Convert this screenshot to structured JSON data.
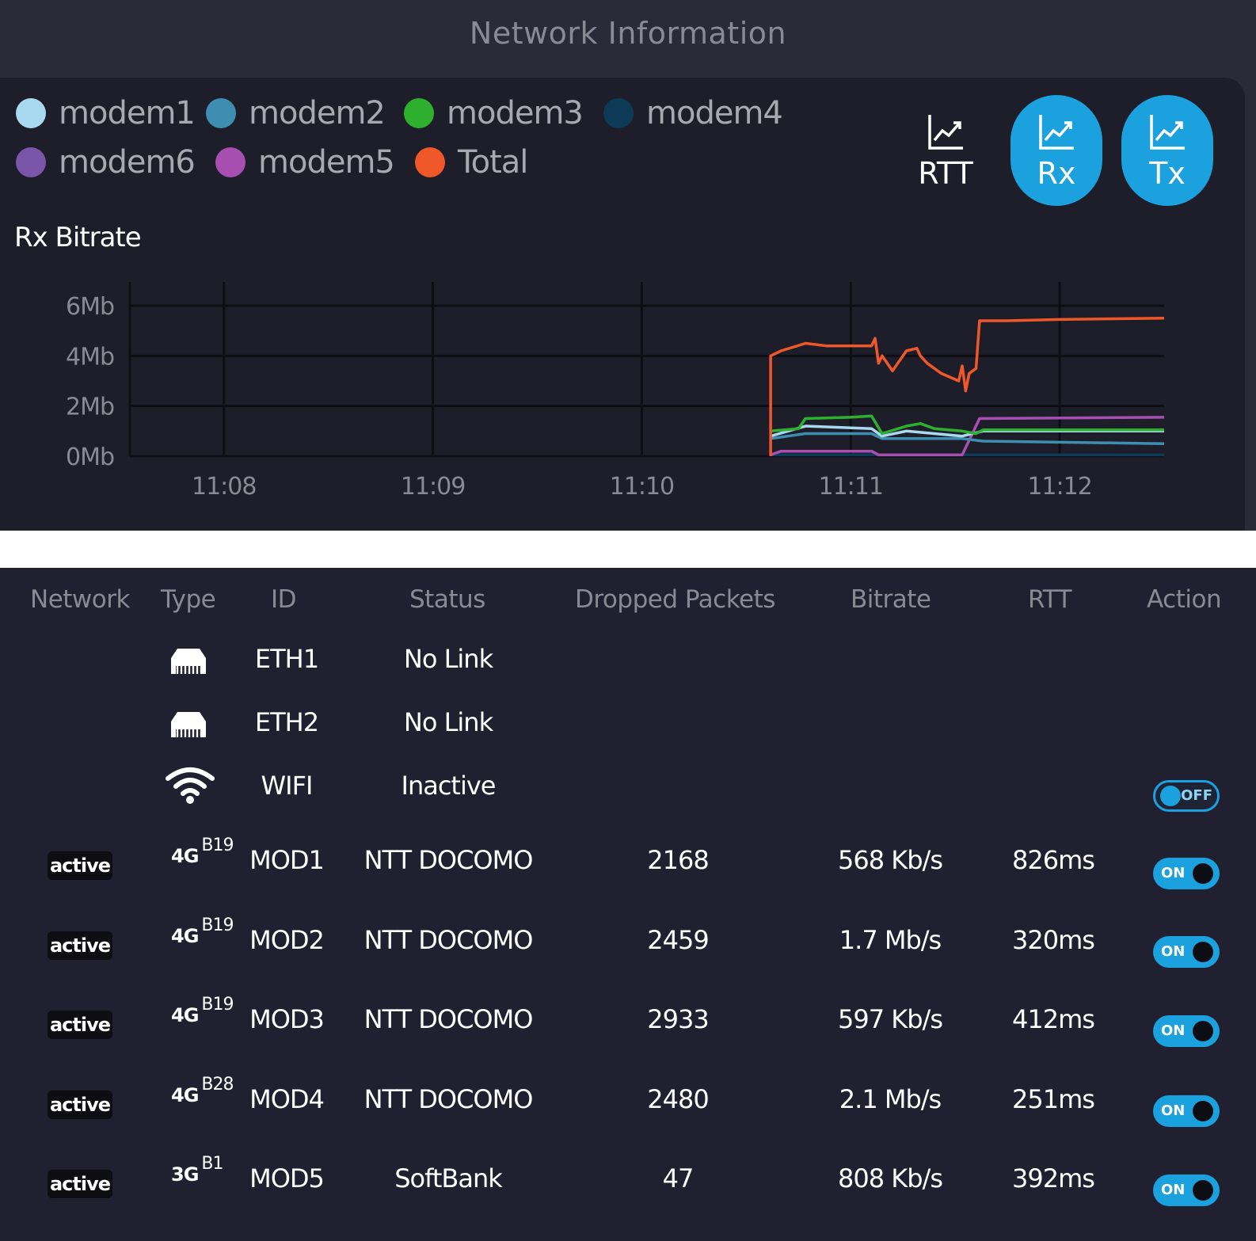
{
  "header": {
    "title": "Network Information"
  },
  "legend": [
    {
      "label": "modem1",
      "color": "#a9d9ee"
    },
    {
      "label": "modem2",
      "color": "#3d8eb0"
    },
    {
      "label": "modem3",
      "color": "#2eb02e"
    },
    {
      "label": "modem4",
      "color": "#0d3b57"
    },
    {
      "label": "modem6",
      "color": "#7a55a8"
    },
    {
      "label": "modem5",
      "color": "#a64fb0"
    },
    {
      "label": "Total",
      "color": "#f0582a"
    }
  ],
  "metrics": {
    "rtt": "RTT",
    "rx": "Rx",
    "tx": "Tx",
    "accent": "#1aa1de"
  },
  "chart_data": {
    "type": "line",
    "title": "Rx Bitrate",
    "y_unit": "Mb",
    "ylim": [
      0,
      6
    ],
    "y_ticks": [
      "0Mb",
      "2Mb",
      "4Mb",
      "6Mb"
    ],
    "y_tick_values": [
      0,
      2,
      4,
      6
    ],
    "xlim": [
      "11:07:33",
      "11:12:30"
    ],
    "x_ticks": [
      "11:08",
      "11:09",
      "11:10",
      "11:11",
      "11:12"
    ],
    "x_tick_values": [
      "11:08:00",
      "11:09:00",
      "11:10:00",
      "11:11:00",
      "11:12:00"
    ],
    "grid": true,
    "series": [
      {
        "name": "Total",
        "color": "#f0582a",
        "points": [
          [
            "11:10:37",
            0
          ],
          [
            "11:10:37",
            4.0
          ],
          [
            "11:10:40",
            4.2
          ],
          [
            "11:10:47",
            4.5
          ],
          [
            "11:10:53",
            4.4
          ],
          [
            "11:11:00",
            4.4
          ],
          [
            "11:11:06",
            4.4
          ],
          [
            "11:11:07",
            4.7
          ],
          [
            "11:11:08",
            3.7
          ],
          [
            "11:11:09",
            4.0
          ],
          [
            "11:11:12",
            3.4
          ],
          [
            "11:11:16",
            4.2
          ],
          [
            "11:11:19",
            4.3
          ],
          [
            "11:11:20",
            4.0
          ],
          [
            "11:11:22",
            3.7
          ],
          [
            "11:11:26",
            3.3
          ],
          [
            "11:11:31",
            3.0
          ],
          [
            "11:11:32",
            3.6
          ],
          [
            "11:11:33",
            2.6
          ],
          [
            "11:11:34",
            3.3
          ],
          [
            "11:11:36",
            3.5
          ],
          [
            "11:11:37",
            5.4
          ],
          [
            "11:11:45",
            5.4
          ],
          [
            "11:12:00",
            5.45
          ],
          [
            "11:12:30",
            5.5
          ]
        ]
      },
      {
        "name": "modem3",
        "color": "#2eb02e",
        "points": [
          [
            "11:10:37",
            1.0
          ],
          [
            "11:10:45",
            1.1
          ],
          [
            "11:10:47",
            1.5
          ],
          [
            "11:11:00",
            1.55
          ],
          [
            "11:11:06",
            1.6
          ],
          [
            "11:11:09",
            0.9
          ],
          [
            "11:11:16",
            1.2
          ],
          [
            "11:11:20",
            1.3
          ],
          [
            "11:11:24",
            1.1
          ],
          [
            "11:11:32",
            1.0
          ],
          [
            "11:11:36",
            0.9
          ],
          [
            "11:11:38",
            1.05
          ],
          [
            "11:12:30",
            1.05
          ]
        ]
      },
      {
        "name": "modem1",
        "color": "#a9d9ee",
        "points": [
          [
            "11:10:37",
            0.8
          ],
          [
            "11:10:47",
            1.2
          ],
          [
            "11:11:06",
            1.1
          ],
          [
            "11:11:09",
            0.8
          ],
          [
            "11:11:16",
            1.0
          ],
          [
            "11:11:32",
            0.8
          ],
          [
            "11:11:38",
            1.0
          ],
          [
            "11:12:30",
            1.0
          ]
        ]
      },
      {
        "name": "modem2",
        "color": "#3d8eb0",
        "points": [
          [
            "11:10:37",
            0.7
          ],
          [
            "11:10:47",
            0.9
          ],
          [
            "11:11:06",
            0.9
          ],
          [
            "11:11:09",
            0.7
          ],
          [
            "11:11:32",
            0.7
          ],
          [
            "11:11:38",
            0.6
          ],
          [
            "11:12:30",
            0.5
          ]
        ]
      },
      {
        "name": "modem5",
        "color": "#a64fb0",
        "points": [
          [
            "11:10:37",
            0.05
          ],
          [
            "11:10:40",
            0.2
          ],
          [
            "11:11:06",
            0.2
          ],
          [
            "11:11:08",
            0.05
          ],
          [
            "11:11:32",
            0.05
          ],
          [
            "11:11:37",
            1.5
          ],
          [
            "11:12:30",
            1.55
          ]
        ]
      },
      {
        "name": "modem4",
        "color": "#0d3b57",
        "points": [
          [
            "11:10:37",
            0.05
          ],
          [
            "11:12:30",
            0.05
          ]
        ]
      }
    ]
  },
  "table": {
    "headers": {
      "network": "Network",
      "type": "Type",
      "id": "ID",
      "status": "Status",
      "dropped": "Dropped Packets",
      "bitrate": "Bitrate",
      "rtt": "RTT",
      "action": "Action"
    },
    "interfaces": [
      {
        "icon": "ethernet",
        "id": "ETH1",
        "status": "No Link"
      },
      {
        "icon": "ethernet",
        "id": "ETH2",
        "status": "No Link"
      },
      {
        "icon": "wifi",
        "id": "WIFI",
        "status": "Inactive",
        "toggle": "OFF"
      }
    ],
    "modems": [
      {
        "network": "active",
        "gen": "4G",
        "band": "B19",
        "id": "MOD1",
        "status": "NTT DOCOMO",
        "dropped": "2168",
        "bitrate": "568 Kb/s",
        "rtt": "826ms",
        "toggle": "ON"
      },
      {
        "network": "active",
        "gen": "4G",
        "band": "B19",
        "id": "MOD2",
        "status": "NTT DOCOMO",
        "dropped": "2459",
        "bitrate": "1.7 Mb/s",
        "rtt": "320ms",
        "toggle": "ON"
      },
      {
        "network": "active",
        "gen": "4G",
        "band": "B19",
        "id": "MOD3",
        "status": "NTT DOCOMO",
        "dropped": "2933",
        "bitrate": "597 Kb/s",
        "rtt": "412ms",
        "toggle": "ON"
      },
      {
        "network": "active",
        "gen": "4G",
        "band": "B28",
        "id": "MOD4",
        "status": "NTT DOCOMO",
        "dropped": "2480",
        "bitrate": "2.1 Mb/s",
        "rtt": "251ms",
        "toggle": "ON"
      },
      {
        "network": "active",
        "gen": "3G",
        "band": "B1",
        "id": "MOD5",
        "status": "SoftBank",
        "dropped": "47",
        "bitrate": "808 Kb/s",
        "rtt": "392ms",
        "toggle": "ON"
      }
    ]
  }
}
